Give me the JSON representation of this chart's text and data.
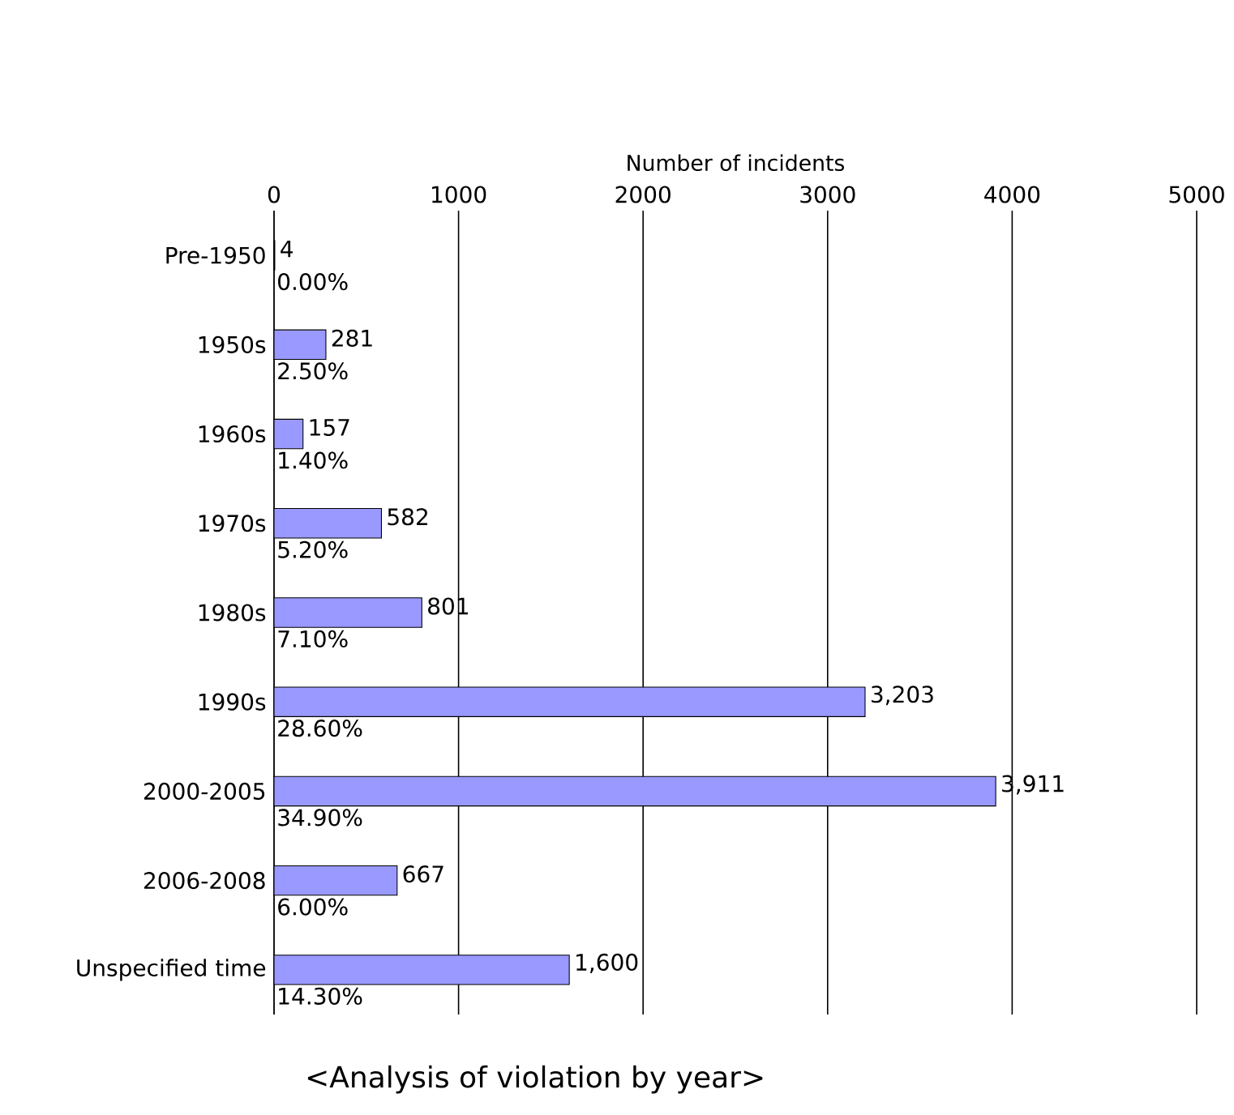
{
  "chart_data": {
    "type": "bar",
    "orientation": "horizontal",
    "title": "<Analysis of violation by year>",
    "xlabel": "Number of incidents",
    "categories": [
      "Pre-1950",
      "1950s",
      "1960s",
      "1970s",
      "1980s",
      "1990s",
      "2000-2005",
      "2006-2008",
      "Unspecified time"
    ],
    "values": [
      4,
      281,
      157,
      582,
      801,
      3203,
      3911,
      667,
      1600
    ],
    "value_labels": [
      "4",
      "281",
      "157",
      "582",
      "801",
      "3,203",
      "3,911",
      "667",
      "1,600"
    ],
    "color": "#9999ff",
    "xlim": [
      0,
      5000
    ],
    "xticks": [
      0,
      1000,
      2000,
      3000,
      4000,
      5000
    ],
    "grid": "x",
    "annotations": [
      "0.00%",
      "2.50%",
      "1.40%",
      "5.20%",
      "7.10%",
      "28.60%",
      "34.90%",
      "6.00%",
      "14.30%"
    ]
  }
}
